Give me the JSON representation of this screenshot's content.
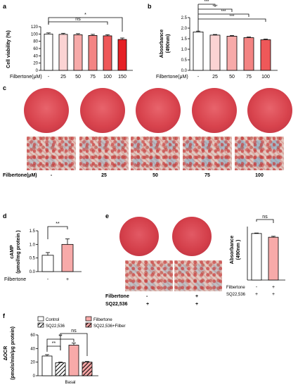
{
  "panels": {
    "a": "a",
    "b": "b",
    "c": "c",
    "d": "d",
    "e": "e",
    "f": "f"
  },
  "colors": {
    "white": "#ffffff",
    "pink1": "#fbd3d3",
    "pink2": "#f7aaa9",
    "pink3": "#f38483",
    "red1": "#ee5859",
    "red2": "#e51f24",
    "stain": "#d2424a"
  },
  "chart_data": [
    {
      "id": "a",
      "type": "bar",
      "ylabel": "Cell viability (%)",
      "xlabel": "Filbertone(μM)",
      "categories": [
        "-",
        "25",
        "50",
        "75",
        "100",
        "150"
      ],
      "values": [
        100,
        99,
        98,
        96,
        95,
        85
      ],
      "errors": [
        3,
        3,
        3,
        3,
        3,
        4
      ],
      "colors": [
        "#ffffff",
        "#fbd3d3",
        "#f7aaa9",
        "#f38483",
        "#ee5859",
        "#e51f24"
      ],
      "yticks": [
        "0",
        "20",
        "40",
        "60",
        "80",
        "100",
        "120"
      ],
      "ylim": [
        0,
        120
      ],
      "annotations": [
        {
          "from": 0,
          "to": 4,
          "text": "ns"
        },
        {
          "from": 0,
          "to": 5,
          "text": "*"
        }
      ]
    },
    {
      "id": "b",
      "type": "bar",
      "ylabel": "Absorbance (490nm)",
      "xlabel": "Filbertone(μM)",
      "categories": [
        "-",
        "25",
        "50",
        "75",
        "100"
      ],
      "values": [
        1.82,
        1.67,
        1.62,
        1.55,
        1.45
      ],
      "errors": [
        0.04,
        0.03,
        0.03,
        0.03,
        0.03
      ],
      "colors": [
        "#ffffff",
        "#fbd3d3",
        "#f7aaa9",
        "#f38483",
        "#ee5859"
      ],
      "yticks": [
        "0.0",
        "0.5",
        "1.0",
        "1.5",
        "2.0",
        "2.5"
      ],
      "ylim": [
        0,
        2.5
      ],
      "annotations": [
        {
          "from": 0,
          "to": 1,
          "text": "***"
        },
        {
          "from": 0,
          "to": 2,
          "text": "***"
        },
        {
          "from": 0,
          "to": 3,
          "text": "***"
        },
        {
          "from": 0,
          "to": 4,
          "text": "***"
        }
      ]
    },
    {
      "id": "d",
      "type": "bar",
      "ylabel": "cAMP (pmol/mg protein )",
      "xlabel": "Filbertone",
      "categories": [
        "-",
        "+"
      ],
      "values": [
        0.6,
        1.0
      ],
      "errors": [
        0.1,
        0.2
      ],
      "colors": [
        "#ffffff",
        "#f7aaa9"
      ],
      "yticks": [
        "0.0",
        "0.5",
        "1.0",
        "1.5"
      ],
      "ylim": [
        0,
        1.5
      ],
      "annotations": [
        {
          "from": 0,
          "to": 1,
          "text": "**"
        }
      ]
    },
    {
      "id": "e",
      "type": "bar",
      "ylabel": "Absorbance (490nm )",
      "row_labels": [
        "Filbertone",
        "SQ22,536"
      ],
      "categories": [
        [
          "-",
          "+"
        ],
        [
          "+",
          "+"
        ]
      ],
      "values": [
        1.0,
        0.92
      ],
      "errors": [
        0.01,
        0.02
      ],
      "colors": [
        "#ffffff",
        "#f7aaa9"
      ],
      "ylim": [
        0,
        1.3
      ],
      "annotations": [
        {
          "from": 0,
          "to": 1,
          "text": "ns"
        }
      ]
    },
    {
      "id": "f",
      "type": "bar",
      "ylabel": "ΔOCR (pmols/min/μg protein)",
      "xlabel": "Basal",
      "series": [
        {
          "name": "Control",
          "value": 29,
          "error": 2
        },
        {
          "name": "Filbertone",
          "value": 45,
          "error": 3
        },
        {
          "name": "SQ22,536",
          "value": 19,
          "error": 1
        },
        {
          "name": "SQ22,536+Filber",
          "value": 20,
          "error": 1
        }
      ],
      "bar_order": [
        "Control",
        "SQ22,536",
        "Filbertone",
        "SQ22,536+Filber"
      ],
      "yticks": [
        "0",
        "20",
        "40",
        "60"
      ],
      "ylim": [
        0,
        60
      ],
      "annotations": [
        {
          "from": 0,
          "to": 1,
          "text": "**"
        },
        {
          "from": 0,
          "to": 2,
          "text": "**"
        },
        {
          "from": 1,
          "to": 3,
          "text": "ns"
        }
      ]
    }
  ],
  "panel_c": {
    "row_label": "Filbertone(μM)",
    "concentrations": [
      "-",
      "25",
      "50",
      "75",
      "100"
    ]
  },
  "panel_e_images": {
    "row_labels": [
      "Filbertone",
      "SQ22,536"
    ],
    "filbertone_signs": [
      "-",
      "+"
    ],
    "sq_signs": [
      "+",
      "+"
    ]
  }
}
